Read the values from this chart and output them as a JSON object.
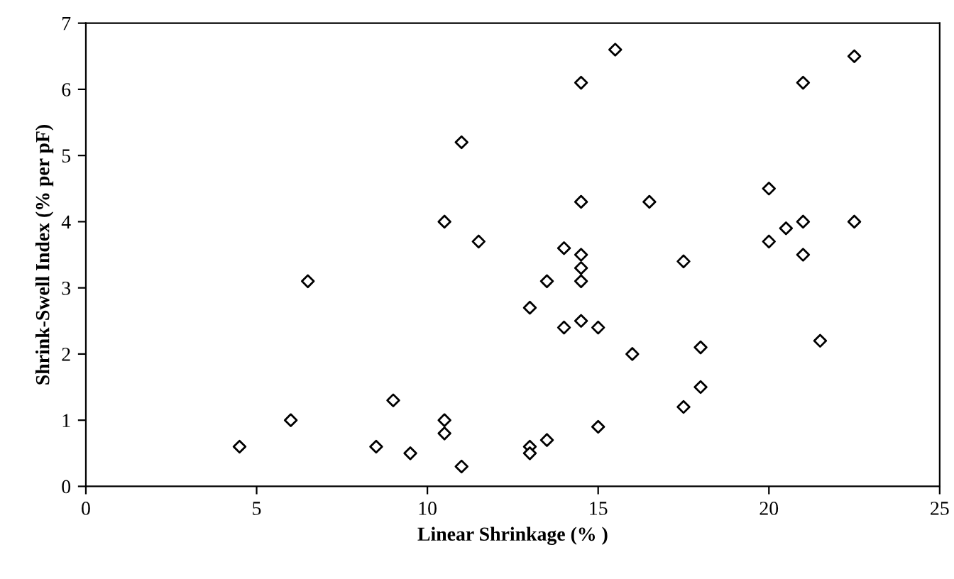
{
  "chart_data": {
    "type": "scatter",
    "xlabel": "Linear Shrinkage (% )",
    "ylabel": "Shrink-Swell Index (% per pF)",
    "x": [
      4.5,
      6,
      6.5,
      8.5,
      9,
      9.5,
      10.5,
      10.5,
      10.5,
      11,
      11,
      11.5,
      13,
      13,
      13,
      13.5,
      13.5,
      14,
      14,
      14.5,
      14.5,
      14.5,
      14.5,
      14.5,
      14.5,
      15,
      15,
      15.5,
      16,
      16.5,
      17.5,
      17.5,
      18,
      18,
      20,
      20,
      20.5,
      21,
      21,
      21,
      21.5,
      22.5,
      22.5
    ],
    "values": [
      0.6,
      1.0,
      3.1,
      0.6,
      1.3,
      0.5,
      4.0,
      1.0,
      0.8,
      5.2,
      0.3,
      3.7,
      2.7,
      0.6,
      0.5,
      3.1,
      0.7,
      3.6,
      2.4,
      6.1,
      4.3,
      3.5,
      3.3,
      3.1,
      2.5,
      2.4,
      0.9,
      6.6,
      2.0,
      4.3,
      3.4,
      1.2,
      2.1,
      1.5,
      4.5,
      3.7,
      3.9,
      6.1,
      4.0,
      3.5,
      2.2,
      6.5,
      4.0
    ],
    "color": "#000000",
    "marker": "diamond",
    "xlim": [
      0,
      25
    ],
    "xticks": [
      0,
      5,
      10,
      15,
      20,
      25
    ],
    "ylim": [
      0,
      7
    ],
    "yticks": [
      0,
      1,
      2,
      3,
      4,
      5,
      6,
      7
    ],
    "grid": false,
    "legend": false
  }
}
